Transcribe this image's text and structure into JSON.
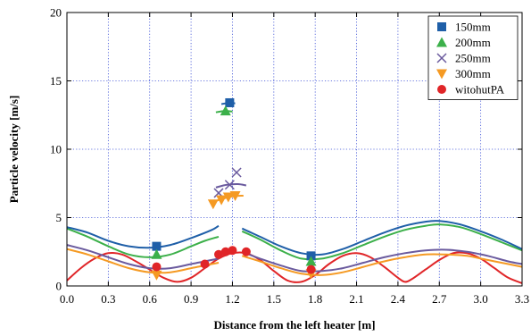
{
  "chart_data": {
    "type": "scatter",
    "xlabel": "Distance from the left heater [m]",
    "ylabel": "Particle velocity [m/s]",
    "xlim": [
      0.0,
      3.3
    ],
    "ylim": [
      0,
      20
    ],
    "xticks": [
      "0.0",
      "0.3",
      "0.6",
      "0.9",
      "1.2",
      "1.5",
      "1.8",
      "2.1",
      "2.4",
      "2.7",
      "3.0",
      "3.3"
    ],
    "yticks": [
      "0",
      "5",
      "10",
      "15",
      "20"
    ],
    "grid": true,
    "legend_position": "top-right",
    "series": [
      {
        "name": "150mm",
        "marker": "square",
        "color": "#1f5fa8",
        "points": [
          [
            0.65,
            2.9
          ],
          [
            1.18,
            13.4
          ],
          [
            1.77,
            2.2
          ]
        ],
        "fit_segments": [
          [
            [
              0.0,
              4.3
            ],
            [
              0.15,
              3.9
            ],
            [
              0.3,
              3.3
            ],
            [
              0.45,
              2.9
            ],
            [
              0.6,
              2.8
            ],
            [
              0.75,
              3.0
            ],
            [
              0.9,
              3.5
            ],
            [
              1.05,
              4.1
            ],
            [
              1.1,
              4.4
            ]
          ],
          [
            [
              1.12,
              13.3
            ],
            [
              1.18,
              13.4
            ],
            [
              1.22,
              13.35
            ]
          ],
          [
            [
              1.27,
              4.2
            ],
            [
              1.4,
              3.6
            ],
            [
              1.55,
              2.9
            ],
            [
              1.7,
              2.4
            ],
            [
              1.85,
              2.3
            ],
            [
              2.0,
              2.7
            ],
            [
              2.15,
              3.3
            ],
            [
              2.3,
              3.9
            ],
            [
              2.45,
              4.4
            ],
            [
              2.6,
              4.7
            ],
            [
              2.7,
              4.75
            ],
            [
              2.85,
              4.5
            ],
            [
              3.0,
              4.0
            ],
            [
              3.15,
              3.4
            ],
            [
              3.3,
              2.7
            ]
          ]
        ]
      },
      {
        "name": "200mm",
        "marker": "triangle-up",
        "color": "#3cb04a",
        "points": [
          [
            0.65,
            2.3
          ],
          [
            1.15,
            12.8
          ],
          [
            1.77,
            1.8
          ]
        ],
        "fit_segments": [
          [
            [
              0.0,
              4.2
            ],
            [
              0.15,
              3.6
            ],
            [
              0.3,
              2.9
            ],
            [
              0.45,
              2.3
            ],
            [
              0.6,
              2.1
            ],
            [
              0.75,
              2.3
            ],
            [
              0.9,
              2.9
            ],
            [
              1.0,
              3.3
            ],
            [
              1.1,
              3.6
            ]
          ],
          [
            [
              1.08,
              12.7
            ],
            [
              1.14,
              12.8
            ],
            [
              1.2,
              12.75
            ]
          ],
          [
            [
              1.27,
              4.0
            ],
            [
              1.4,
              3.4
            ],
            [
              1.55,
              2.6
            ],
            [
              1.7,
              2.0
            ],
            [
              1.85,
              2.0
            ],
            [
              2.0,
              2.4
            ],
            [
              2.15,
              3.0
            ],
            [
              2.3,
              3.6
            ],
            [
              2.45,
              4.1
            ],
            [
              2.6,
              4.4
            ],
            [
              2.7,
              4.5
            ],
            [
              2.85,
              4.3
            ],
            [
              3.0,
              3.8
            ],
            [
              3.15,
              3.2
            ],
            [
              3.3,
              2.6
            ]
          ]
        ]
      },
      {
        "name": "250mm",
        "marker": "x",
        "color": "#6a5a9e",
        "points": [
          [
            1.1,
            6.8
          ],
          [
            1.18,
            7.4
          ],
          [
            1.23,
            8.3
          ]
        ],
        "fit_segments": [
          [
            [
              0.0,
              3.0
            ],
            [
              0.15,
              2.6
            ],
            [
              0.3,
              2.1
            ],
            [
              0.45,
              1.6
            ],
            [
              0.6,
              1.3
            ],
            [
              0.75,
              1.3
            ],
            [
              0.9,
              1.6
            ],
            [
              1.0,
              1.8
            ],
            [
              1.1,
              2.0
            ]
          ],
          [
            [
              1.08,
              7.2
            ],
            [
              1.16,
              7.4
            ],
            [
              1.24,
              7.45
            ],
            [
              1.3,
              7.35
            ]
          ],
          [
            [
              1.27,
              2.5
            ],
            [
              1.4,
              2.0
            ],
            [
              1.55,
              1.5
            ],
            [
              1.7,
              1.1
            ],
            [
              1.85,
              1.1
            ],
            [
              2.0,
              1.3
            ],
            [
              2.15,
              1.7
            ],
            [
              2.3,
              2.1
            ],
            [
              2.45,
              2.4
            ],
            [
              2.6,
              2.6
            ],
            [
              2.75,
              2.65
            ],
            [
              2.9,
              2.5
            ],
            [
              3.05,
              2.2
            ],
            [
              3.2,
              1.8
            ],
            [
              3.3,
              1.6
            ]
          ]
        ]
      },
      {
        "name": "300mm",
        "marker": "triangle-down",
        "color": "#f59a23",
        "points": [
          [
            0.65,
            0.8
          ],
          [
            1.06,
            6.0
          ],
          [
            1.12,
            6.3
          ],
          [
            1.17,
            6.5
          ],
          [
            1.22,
            6.6
          ],
          [
            1.77,
            0.9
          ]
        ],
        "fit_segments": [
          [
            [
              0.0,
              2.7
            ],
            [
              0.15,
              2.3
            ],
            [
              0.3,
              1.8
            ],
            [
              0.45,
              1.3
            ],
            [
              0.6,
              1.0
            ],
            [
              0.75,
              1.0
            ],
            [
              0.9,
              1.3
            ],
            [
              1.0,
              1.5
            ],
            [
              1.1,
              1.7
            ]
          ],
          [
            [
              1.05,
              6.1
            ],
            [
              1.12,
              6.35
            ],
            [
              1.2,
              6.55
            ],
            [
              1.28,
              6.6
            ]
          ],
          [
            [
              1.27,
              2.2
            ],
            [
              1.4,
              1.8
            ],
            [
              1.55,
              1.3
            ],
            [
              1.7,
              0.9
            ],
            [
              1.85,
              0.8
            ],
            [
              2.0,
              1.0
            ],
            [
              2.15,
              1.4
            ],
            [
              2.3,
              1.8
            ],
            [
              2.45,
              2.1
            ],
            [
              2.6,
              2.3
            ],
            [
              2.75,
              2.3
            ],
            [
              2.9,
              2.2
            ],
            [
              3.05,
              1.9
            ],
            [
              3.2,
              1.6
            ],
            [
              3.3,
              1.4
            ]
          ]
        ]
      },
      {
        "name": "witohutPA",
        "marker": "circle",
        "color": "#e02528",
        "points": [
          [
            0.65,
            1.4
          ],
          [
            1.0,
            1.6
          ],
          [
            1.1,
            2.3
          ],
          [
            1.15,
            2.5
          ],
          [
            1.2,
            2.6
          ],
          [
            1.3,
            2.5
          ],
          [
            1.77,
            1.2
          ]
        ],
        "fit_segments": [
          [
            [
              0.0,
              0.4
            ],
            [
              0.1,
              1.3
            ],
            [
              0.2,
              2.0
            ],
            [
              0.3,
              2.4
            ],
            [
              0.4,
              2.3
            ],
            [
              0.5,
              1.8
            ],
            [
              0.6,
              1.2
            ],
            [
              0.7,
              0.6
            ],
            [
              0.8,
              0.3
            ],
            [
              0.9,
              0.6
            ],
            [
              1.0,
              1.3
            ],
            [
              1.1,
              2.0
            ],
            [
              1.2,
              2.4
            ],
            [
              1.3,
              2.4
            ],
            [
              1.4,
              1.9
            ],
            [
              1.5,
              1.1
            ],
            [
              1.6,
              0.4
            ],
            [
              1.7,
              0.3
            ],
            [
              1.8,
              0.8
            ],
            [
              1.9,
              1.6
            ],
            [
              2.0,
              2.2
            ],
            [
              2.1,
              2.4
            ],
            [
              2.2,
              2.1
            ],
            [
              2.3,
              1.4
            ],
            [
              2.4,
              0.6
            ],
            [
              2.45,
              0.3
            ],
            [
              2.5,
              0.5
            ],
            [
              2.6,
              1.2
            ],
            [
              2.7,
              1.9
            ],
            [
              2.8,
              2.4
            ],
            [
              2.9,
              2.4
            ],
            [
              3.0,
              2.0
            ],
            [
              3.1,
              1.3
            ],
            [
              3.2,
              0.6
            ],
            [
              3.3,
              0.2
            ]
          ]
        ]
      }
    ]
  }
}
